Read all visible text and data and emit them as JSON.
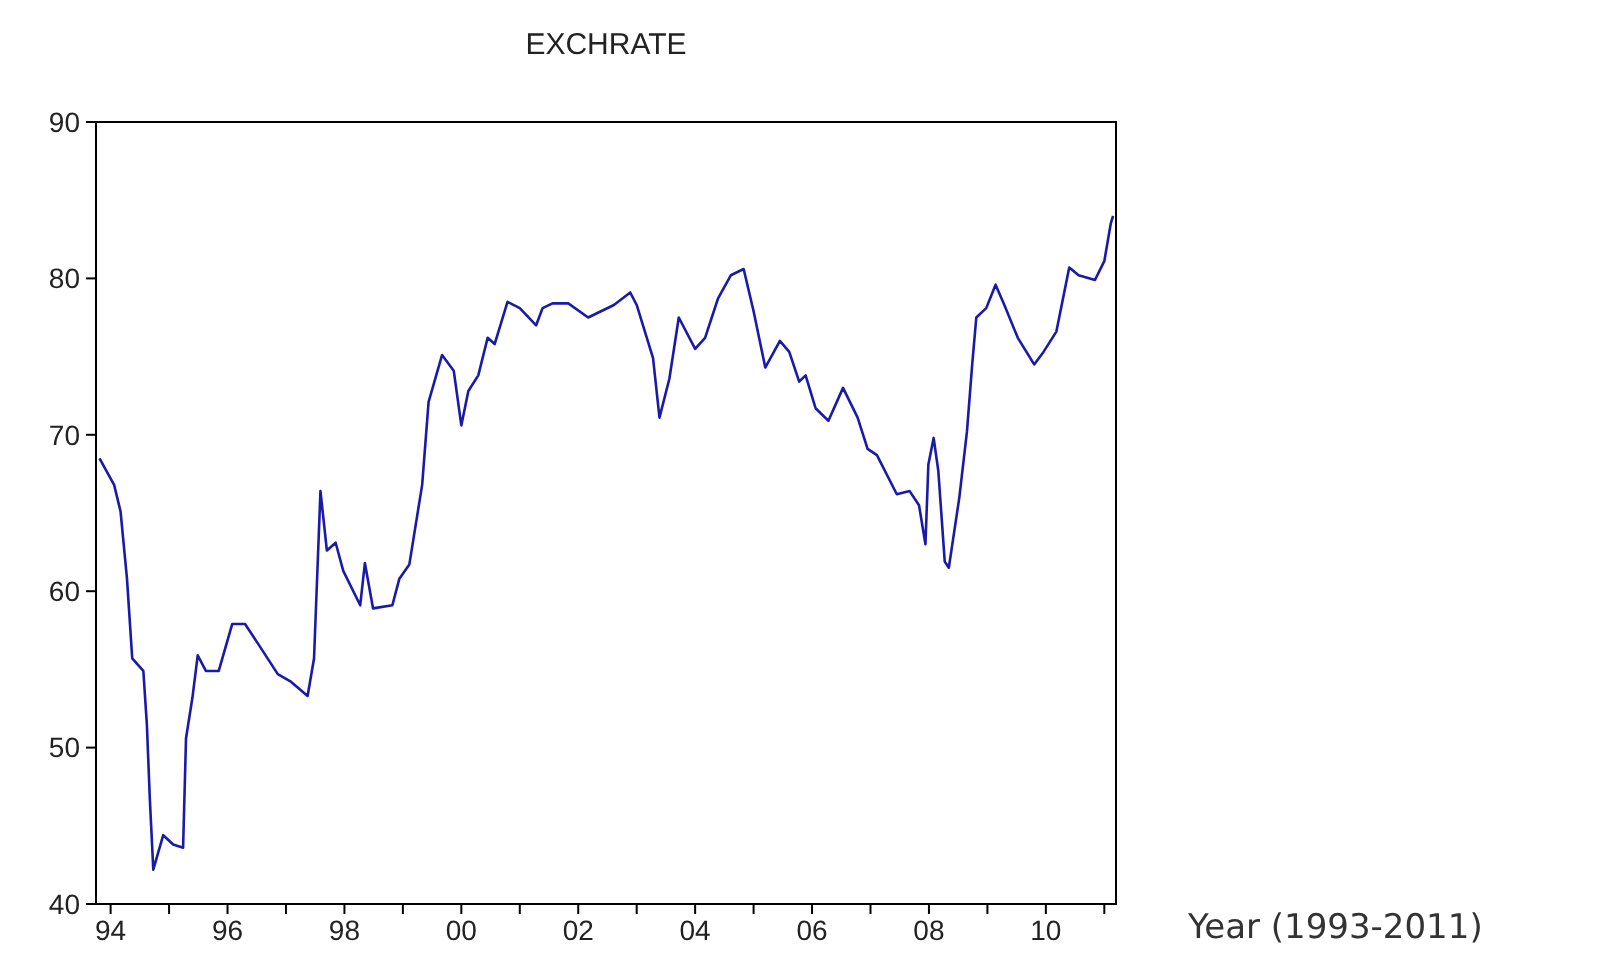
{
  "chart_data": {
    "type": "line",
    "title": "EXCHRATE",
    "xlabel": "Year (1993-2011)",
    "x": [
      1993.81,
      1994.06,
      1994.17,
      1994.28,
      1994.37,
      1994.56,
      1994.62,
      1994.67,
      1994.73,
      1994.9,
      1995.07,
      1995.24,
      1995.29,
      1995.4,
      1995.49,
      1995.63,
      1995.85,
      1996.08,
      1996.3,
      1996.53,
      1996.86,
      1997.09,
      1997.37,
      1997.48,
      1997.59,
      1997.7,
      1997.85,
      1997.98,
      1998.27,
      1998.35,
      1998.49,
      1998.82,
      1998.94,
      1999.11,
      1999.33,
      1999.44,
      1999.67,
      1999.87,
      2000.0,
      2000.12,
      2000.29,
      2000.45,
      2000.57,
      2000.79,
      2001.0,
      2001.28,
      2001.39,
      2001.56,
      2001.83,
      2002.17,
      2002.39,
      2002.61,
      2002.89,
      2003.0,
      2003.28,
      2003.39,
      2003.56,
      2003.72,
      2004.0,
      2004.17,
      2004.39,
      2004.61,
      2004.83,
      2005.0,
      2005.2,
      2005.45,
      2005.61,
      2005.78,
      2005.89,
      2006.06,
      2006.28,
      2006.53,
      2006.78,
      2006.95,
      2007.11,
      2007.45,
      2007.67,
      2007.83,
      2007.94,
      2007.99,
      2008.08,
      2008.16,
      2008.27,
      2008.34,
      2008.52,
      2008.65,
      2008.74,
      2008.81,
      2008.98,
      2009.14,
      2009.29,
      2009.52,
      2009.8,
      2009.96,
      2010.18,
      2010.4,
      2010.56,
      2010.84,
      2011.0,
      2011.11,
      2011.15
    ],
    "series": [
      {
        "color": "#1a1aa8",
        "values": [
          68.5,
          66.8,
          65.1,
          60.8,
          55.7,
          54.9,
          51.5,
          46.8,
          42.2,
          44.4,
          43.8,
          43.6,
          50.6,
          53.2,
          55.9,
          54.9,
          54.9,
          57.9,
          57.9,
          56.6,
          54.7,
          54.2,
          53.3,
          55.7,
          66.4,
          62.6,
          63.1,
          61.3,
          59.1,
          61.8,
          58.9,
          59.1,
          60.8,
          61.7,
          66.8,
          72.1,
          75.1,
          74.1,
          70.6,
          72.8,
          73.8,
          76.2,
          75.8,
          78.5,
          78.1,
          77.0,
          78.1,
          78.4,
          78.4,
          77.5,
          77.9,
          78.3,
          79.1,
          78.3,
          74.9,
          71.1,
          73.6,
          77.5,
          75.5,
          76.2,
          78.7,
          80.2,
          80.6,
          77.9,
          74.3,
          76.0,
          75.3,
          73.4,
          73.8,
          71.7,
          70.9,
          73.0,
          71.1,
          69.1,
          68.7,
          66.2,
          66.4,
          65.5,
          63.0,
          68.1,
          69.8,
          67.7,
          61.9,
          61.5,
          66.0,
          70.2,
          74.5,
          77.5,
          78.1,
          79.6,
          78.3,
          76.2,
          74.5,
          75.3,
          76.6,
          80.7,
          80.2,
          79.9,
          81.1,
          83.5,
          84.0
        ]
      }
    ],
    "xlim": [
      1993.75,
      2011.2
    ],
    "xticks": [
      {
        "value": 1994,
        "label": "94"
      },
      {
        "value": 1995,
        "label": null
      },
      {
        "value": 1996,
        "label": "96"
      },
      {
        "value": 1997,
        "label": null
      },
      {
        "value": 1998,
        "label": "98"
      },
      {
        "value": 1999,
        "label": null
      },
      {
        "value": 2000,
        "label": "00"
      },
      {
        "value": 2001,
        "label": null
      },
      {
        "value": 2002,
        "label": "02"
      },
      {
        "value": 2003,
        "label": null
      },
      {
        "value": 2004,
        "label": "04"
      },
      {
        "value": 2005,
        "label": null
      },
      {
        "value": 2006,
        "label": "06"
      },
      {
        "value": 2007,
        "label": null
      },
      {
        "value": 2008,
        "label": "08"
      },
      {
        "value": 2009,
        "label": null
      },
      {
        "value": 2010,
        "label": "10"
      },
      {
        "value": 2011,
        "label": null
      }
    ],
    "ylim": [
      40,
      90
    ],
    "yticks": [
      40,
      50,
      60,
      70,
      80,
      90
    ],
    "line_style": "solid",
    "marker": "none"
  }
}
